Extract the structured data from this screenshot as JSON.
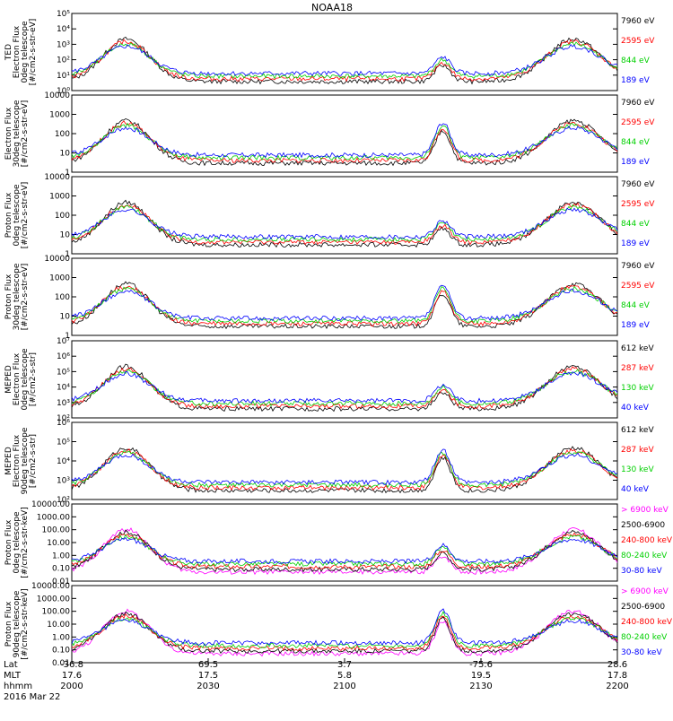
{
  "title": "NOAA18",
  "footer": {
    "labels": [
      "Lat",
      "MLT",
      "hhmm"
    ],
    "date": "2016 Mar 22",
    "ticks": [
      {
        "lat": "-36.8",
        "mlt": "17.6",
        "hhmm": "2000"
      },
      {
        "lat": "69.5",
        "mlt": "17.5",
        "hhmm": "2030"
      },
      {
        "lat": "3.7",
        "mlt": "5.8",
        "hhmm": "2100"
      },
      {
        "lat": "-75.6",
        "mlt": "19.5",
        "hhmm": "2130"
      },
      {
        "lat": "28.6",
        "mlt": "17.8",
        "hhmm": "2200"
      }
    ]
  },
  "colors": {
    "black": "#000000",
    "red": "#ff0000",
    "green": "#00d000",
    "blue": "#0000ff",
    "magenta": "#ff00ff"
  },
  "chart_data": [
    {
      "type": "line",
      "scale": "log",
      "ylabel": [
        "TED",
        "Electron Flux",
        "0deg telescope",
        "[#/cm2-s-str-eV]"
      ],
      "yticks": [
        "10⁰",
        "10¹",
        "10²",
        "10³",
        "10⁴",
        "10⁵"
      ],
      "ylim": [
        1,
        100000
      ],
      "series": [
        {
          "name": "7960 eV",
          "color": "#000000"
        },
        {
          "name": "2595 eV",
          "color": "#ff0000"
        },
        {
          "name": "844 eV",
          "color": "#00d000"
        },
        {
          "name": "189 eV",
          "color": "#0000ff"
        }
      ]
    },
    {
      "type": "line",
      "scale": "log",
      "ylabel": [
        "Electron Flux",
        "30deg telescope",
        "[#/cm2-s-str-eV]"
      ],
      "yticks": [
        "1",
        "10",
        "100",
        "1000",
        "10000"
      ],
      "ylim": [
        1,
        10000
      ],
      "series": [
        {
          "name": "7960 eV",
          "color": "#000000"
        },
        {
          "name": "2595 eV",
          "color": "#ff0000"
        },
        {
          "name": "844 eV",
          "color": "#00d000"
        },
        {
          "name": "189 eV",
          "color": "#0000ff"
        }
      ]
    },
    {
      "type": "line",
      "scale": "log",
      "ylabel": [
        "Proton Flux",
        "0deg telescope",
        "[#/cm2-s-str-eV]"
      ],
      "yticks": [
        "1",
        "10",
        "100",
        "1000",
        "10000"
      ],
      "ylim": [
        1,
        10000
      ],
      "series": [
        {
          "name": "7960 eV",
          "color": "#000000"
        },
        {
          "name": "2595 eV",
          "color": "#ff0000"
        },
        {
          "name": "844 eV",
          "color": "#00d000"
        },
        {
          "name": "189 eV",
          "color": "#0000ff"
        }
      ]
    },
    {
      "type": "line",
      "scale": "log",
      "ylabel": [
        "Proton Flux",
        "30deg telescope",
        "[#/cm2-s-str-eV]"
      ],
      "yticks": [
        "1",
        "10",
        "100",
        "1000",
        "10000"
      ],
      "ylim": [
        1,
        10000
      ],
      "series": [
        {
          "name": "7960 eV",
          "color": "#000000"
        },
        {
          "name": "2595 eV",
          "color": "#ff0000"
        },
        {
          "name": "844 eV",
          "color": "#00d000"
        },
        {
          "name": "189 eV",
          "color": "#0000ff"
        }
      ]
    },
    {
      "type": "line",
      "scale": "log",
      "ylabel": [
        "MEPED",
        "Electron Flux",
        "0deg telescope",
        "[#/cm2-s-str]"
      ],
      "yticks": [
        "10²",
        "10³",
        "10⁴",
        "10⁵",
        "10⁶",
        "10⁷"
      ],
      "ylim": [
        100,
        10000000
      ],
      "series": [
        {
          "name": "612 keV",
          "color": "#000000"
        },
        {
          "name": "287 keV",
          "color": "#ff0000"
        },
        {
          "name": "130 keV",
          "color": "#00d000"
        },
        {
          "name": "40 keV",
          "color": "#0000ff"
        }
      ]
    },
    {
      "type": "line",
      "scale": "log",
      "ylabel": [
        "MEPED",
        "Electron Flux",
        "90deg telescope",
        "[#/cm2-s-str]"
      ],
      "yticks": [
        "10²",
        "10³",
        "10⁴",
        "10⁵",
        "10⁶"
      ],
      "ylim": [
        100,
        1000000
      ],
      "series": [
        {
          "name": "612 keV",
          "color": "#000000"
        },
        {
          "name": "287 keV",
          "color": "#ff0000"
        },
        {
          "name": "130 keV",
          "color": "#00d000"
        },
        {
          "name": "40 keV",
          "color": "#0000ff"
        }
      ]
    },
    {
      "type": "line",
      "scale": "log",
      "ylabel": [
        "Proton Flux",
        "0deg telescope",
        "[#/cm2-s-str-keV]"
      ],
      "yticks": [
        "0.01",
        "0.10",
        "1.00",
        "10.00",
        "100.00",
        "1000.00",
        "10000.00"
      ],
      "ylim": [
        0.01,
        10000
      ],
      "series": [
        {
          "name": "> 6900 keV",
          "color": "#ff00ff"
        },
        {
          "name": "2500-6900",
          "color": "#000000"
        },
        {
          "name": "240-800 keV",
          "color": "#ff0000"
        },
        {
          "name": "80-240 keV",
          "color": "#00d000"
        },
        {
          "name": "30-80 keV",
          "color": "#0000ff"
        }
      ]
    },
    {
      "type": "line",
      "scale": "log",
      "ylabel": [
        "Proton Flux",
        "90deg telescope",
        "[#/cm2-s-str-keV]"
      ],
      "yticks": [
        "0.01",
        "0.10",
        "1.00",
        "10.00",
        "100.00",
        "1000.00",
        "10000.00"
      ],
      "ylim": [
        0.01,
        10000
      ],
      "series": [
        {
          "name": "> 6900 keV",
          "color": "#ff00ff"
        },
        {
          "name": "2500-6900",
          "color": "#000000"
        },
        {
          "name": "240-800 keV",
          "color": "#ff0000"
        },
        {
          "name": "80-240 keV",
          "color": "#00d000"
        },
        {
          "name": "30-80 keV",
          "color": "#0000ff"
        }
      ]
    }
  ]
}
